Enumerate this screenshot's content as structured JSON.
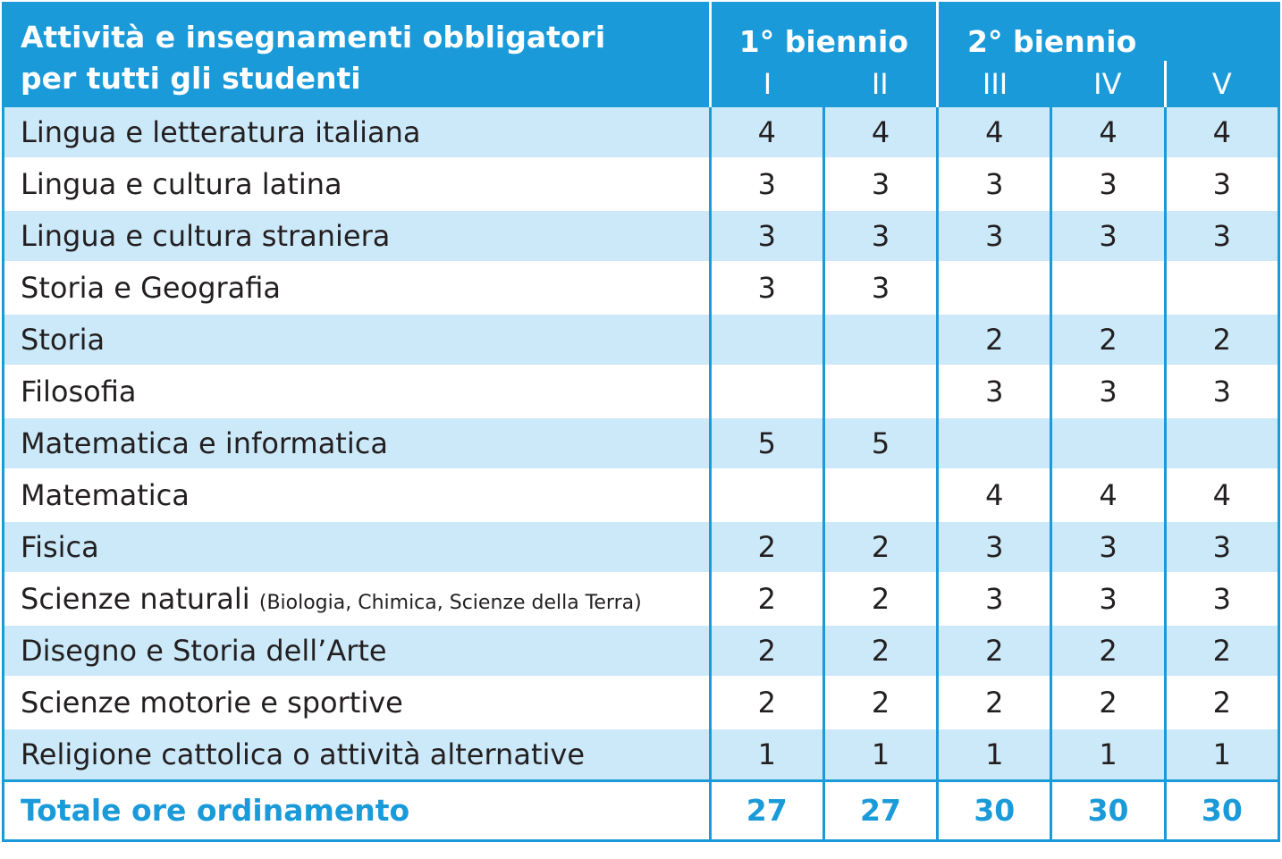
{
  "header": {
    "subject_line1": "Attività e insegnamenti obbligatori",
    "subject_line2": "per tutti gli studenti",
    "group1": "1° biennio",
    "group2": "2° biennio",
    "years": [
      "I",
      "II",
      "III",
      "IV",
      "V"
    ]
  },
  "rows": [
    {
      "subject": "Lingua e letteratura italiana",
      "note": "",
      "values": [
        "4",
        "4",
        "4",
        "4",
        "4"
      ]
    },
    {
      "subject": "Lingua e cultura latina",
      "note": "",
      "values": [
        "3",
        "3",
        "3",
        "3",
        "3"
      ]
    },
    {
      "subject": "Lingua e cultura straniera",
      "note": "",
      "values": [
        "3",
        "3",
        "3",
        "3",
        "3"
      ]
    },
    {
      "subject": "Storia e Geografia",
      "note": "",
      "values": [
        "3",
        "3",
        "",
        "",
        ""
      ]
    },
    {
      "subject": "Storia",
      "note": "",
      "values": [
        "",
        "",
        "2",
        "2",
        "2"
      ]
    },
    {
      "subject": "Filosofia",
      "note": "",
      "values": [
        "",
        "",
        "3",
        "3",
        "3"
      ]
    },
    {
      "subject": "Matematica e informatica",
      "note": "",
      "values": [
        "5",
        "5",
        "",
        "",
        ""
      ]
    },
    {
      "subject": "Matematica",
      "note": "",
      "values": [
        "",
        "",
        "4",
        "4",
        "4"
      ]
    },
    {
      "subject": "Fisica",
      "note": "",
      "values": [
        "2",
        "2",
        "3",
        "3",
        "3"
      ]
    },
    {
      "subject": "Scienze naturali",
      "note": "(Biologia, Chimica, Scienze della Terra)",
      "values": [
        "2",
        "2",
        "3",
        "3",
        "3"
      ]
    },
    {
      "subject": "Disegno e Storia dell’Arte",
      "note": "",
      "values": [
        "2",
        "2",
        "2",
        "2",
        "2"
      ]
    },
    {
      "subject": "Scienze motorie e sportive",
      "note": "",
      "values": [
        "2",
        "2",
        "2",
        "2",
        "2"
      ]
    },
    {
      "subject": "Religione cattolica o attività alternative",
      "note": "",
      "values": [
        "1",
        "1",
        "1",
        "1",
        "1"
      ]
    }
  ],
  "total": {
    "label": "Totale ore ordinamento",
    "values": [
      "27",
      "27",
      "30",
      "30",
      "30"
    ]
  },
  "colors": {
    "accent": "#1a9ad9",
    "row_alt": "#cce9f9",
    "text": "#231f20"
  }
}
